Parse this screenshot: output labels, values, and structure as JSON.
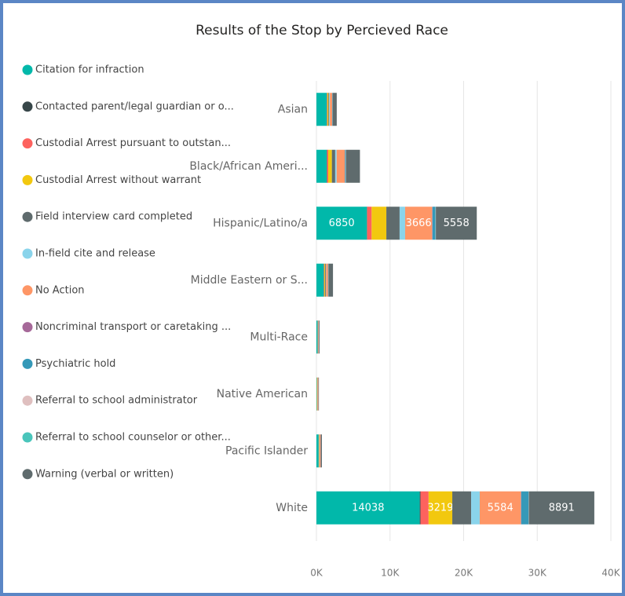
{
  "chart_data": {
    "type": "stacked_bar_horizontal",
    "title": "Results of the Stop by Percieved Race",
    "categories": [
      "Asian",
      "Black/African Ameri...",
      "Hispanic/Latino/a",
      "Middle Eastern or S...",
      "Multi-Race",
      "Native American",
      "Pacific Islander",
      "White"
    ],
    "series": [
      {
        "name": "Citation for infraction",
        "color": "#01B8AA",
        "values": [
          1400,
          1400,
          6850,
          1000,
          150,
          60,
          300,
          14038
        ]
      },
      {
        "name": "Contacted parent/legal guardian or o...",
        "color": "#374649",
        "values": [
          30,
          50,
          50,
          20,
          10,
          5,
          10,
          100
        ]
      },
      {
        "name": "Custodial Arrest pursuant to outstan...",
        "color": "#FD625E",
        "values": [
          50,
          150,
          600,
          50,
          10,
          10,
          20,
          1100
        ]
      },
      {
        "name": "Custodial Arrest without warrant",
        "color": "#F2C80F",
        "values": [
          150,
          500,
          2000,
          100,
          20,
          40,
          40,
          3219
        ]
      },
      {
        "name": "Field interview card completed",
        "color": "#5F6B6D",
        "values": [
          100,
          450,
          1800,
          100,
          20,
          10,
          30,
          2560
        ]
      },
      {
        "name": "In-field cite and release",
        "color": "#8AD4EB",
        "values": [
          100,
          200,
          750,
          50,
          10,
          10,
          20,
          1170
        ]
      },
      {
        "name": "No Action",
        "color": "#FE9666",
        "values": [
          300,
          1100,
          3666,
          250,
          80,
          120,
          150,
          5584
        ]
      },
      {
        "name": "Noncriminal transport or caretaking ...",
        "color": "#A66999",
        "values": [
          10,
          20,
          50,
          10,
          5,
          5,
          5,
          50
        ]
      },
      {
        "name": "Psychiatric hold",
        "color": "#3599B8",
        "values": [
          50,
          100,
          400,
          50,
          10,
          5,
          10,
          1000
        ]
      },
      {
        "name": "Referral to school administrator",
        "color": "#DFBFBF",
        "values": [
          10,
          20,
          30,
          10,
          5,
          5,
          5,
          20
        ]
      },
      {
        "name": "Referral to school counselor or other...",
        "color": "#4AC5BB",
        "values": [
          10,
          20,
          30,
          10,
          5,
          5,
          5,
          20
        ]
      },
      {
        "name": "Warning (verbal or written)",
        "color": "#5F6B6D",
        "values": [
          550,
          1900,
          5558,
          600,
          100,
          60,
          150,
          8891
        ]
      }
    ],
    "xlim": [
      0,
      40000
    ],
    "xticks": [
      {
        "value": 0,
        "label": "0K"
      },
      {
        "value": 10000,
        "label": "10K"
      },
      {
        "value": 20000,
        "label": "20K"
      },
      {
        "value": 30000,
        "label": "30K"
      },
      {
        "value": 40000,
        "label": "40K"
      }
    ],
    "grid": true
  }
}
